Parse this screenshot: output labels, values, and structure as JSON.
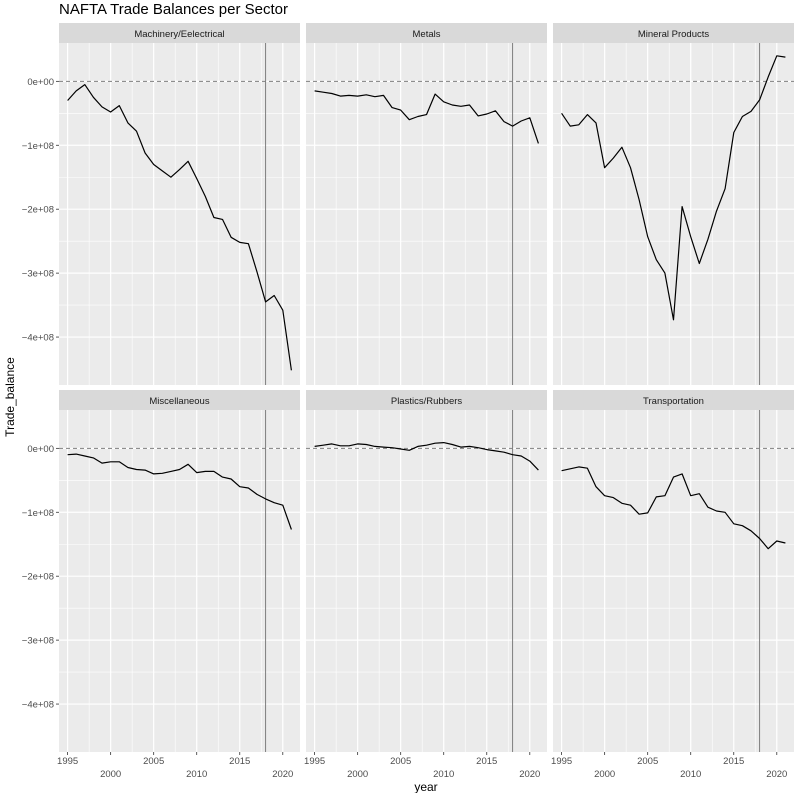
{
  "chart_data": {
    "type": "line",
    "title": "NAFTA Trade Balances per Sector",
    "xlabel": "year",
    "ylabel": "Trade_balance",
    "xlim": [
      1994,
      2022
    ],
    "ylim": [
      -475000000,
      60000000
    ],
    "x_ticks": [
      1995,
      2000,
      2005,
      2010,
      2015,
      2020
    ],
    "x_tick_labels": [
      "1995",
      "2000",
      "2005",
      "2010",
      "2015",
      "2020"
    ],
    "y_ticks": [
      0,
      -100000000,
      -200000000,
      -300000000,
      -400000000
    ],
    "y_tick_labels": [
      "0e+00",
      "−1e+08",
      "−2e+08",
      "−3e+08",
      "−4e+08"
    ],
    "hline": 0,
    "vline": 2018,
    "grid": true,
    "facets_layout": "2 rows x 3 columns",
    "colors": {
      "panel_bg": "#EBEBEB",
      "strip_bg": "#D9D9D9",
      "grid": "#FFFFFF",
      "line": "#000000",
      "ref_line": "#7F7F7F"
    },
    "years": [
      1995,
      1996,
      1997,
      1998,
      1999,
      2000,
      2001,
      2002,
      2003,
      2004,
      2005,
      2006,
      2007,
      2008,
      2009,
      2010,
      2011,
      2012,
      2013,
      2014,
      2015,
      2016,
      2017,
      2018,
      2019,
      2020,
      2021
    ],
    "series": [
      {
        "name": "Machinery/Eelectrical",
        "values": [
          -30000000,
          -15000000,
          -5000000,
          -25000000,
          -40000000,
          -48000000,
          -38000000,
          -65000000,
          -78000000,
          -112000000,
          -130000000,
          -140000000,
          -150000000,
          -138000000,
          -125000000,
          -152000000,
          -180000000,
          -213000000,
          -216000000,
          -244000000,
          -252000000,
          -254000000,
          -298000000,
          -345000000,
          -335000000,
          -358000000,
          -452000000
        ]
      },
      {
        "name": "Metals",
        "values": [
          -15000000,
          -17000000,
          -19000000,
          -23000000,
          -22000000,
          -23000000,
          -21000000,
          -24000000,
          -22000000,
          -41000000,
          -45000000,
          -60000000,
          -55000000,
          -52000000,
          -20000000,
          -32000000,
          -37000000,
          -39000000,
          -37000000,
          -54000000,
          -51000000,
          -46000000,
          -63000000,
          -70000000,
          -62000000,
          -57000000,
          -97000000
        ]
      },
      {
        "name": "Mineral Products",
        "values": [
          -50000000,
          -70000000,
          -68000000,
          -52000000,
          -65000000,
          -135000000,
          -120000000,
          -103000000,
          -135000000,
          -185000000,
          -243000000,
          -279000000,
          -300000000,
          -373000000,
          -196000000,
          -243000000,
          -285000000,
          -247000000,
          -203000000,
          -168000000,
          -80000000,
          -55000000,
          -47000000,
          -29000000,
          7000000,
          40000000,
          38000000
        ]
      },
      {
        "name": "Miscellaneous",
        "values": [
          -10000000,
          -9000000,
          -12000000,
          -15000000,
          -23000000,
          -21000000,
          -21000000,
          -30000000,
          -33000000,
          -34000000,
          -40000000,
          -39000000,
          -36000000,
          -33000000,
          -25000000,
          -38000000,
          -36000000,
          -36000000,
          -45000000,
          -48000000,
          -60000000,
          -62000000,
          -72000000,
          -79000000,
          -85000000,
          -89000000,
          -127000000
        ]
      },
      {
        "name": "Plastics/Rubbers",
        "values": [
          3000000,
          5000000,
          7000000,
          4000000,
          4000000,
          7000000,
          6000000,
          3000000,
          2000000,
          1000000,
          -1000000,
          -3000000,
          3000000,
          5000000,
          8000000,
          9000000,
          6000000,
          2000000,
          3000000,
          1000000,
          -2000000,
          -4000000,
          -6000000,
          -10000000,
          -12000000,
          -20000000,
          -34000000
        ]
      },
      {
        "name": "Transportation",
        "values": [
          -35000000,
          -32000000,
          -29000000,
          -31000000,
          -60000000,
          -74000000,
          -77000000,
          -86000000,
          -89000000,
          -103000000,
          -101000000,
          -76000000,
          -74000000,
          -45000000,
          -40000000,
          -74000000,
          -71000000,
          -92000000,
          -98000000,
          -100000000,
          -118000000,
          -121000000,
          -129000000,
          -141000000,
          -157000000,
          -145000000,
          -148000000
        ]
      }
    ]
  }
}
